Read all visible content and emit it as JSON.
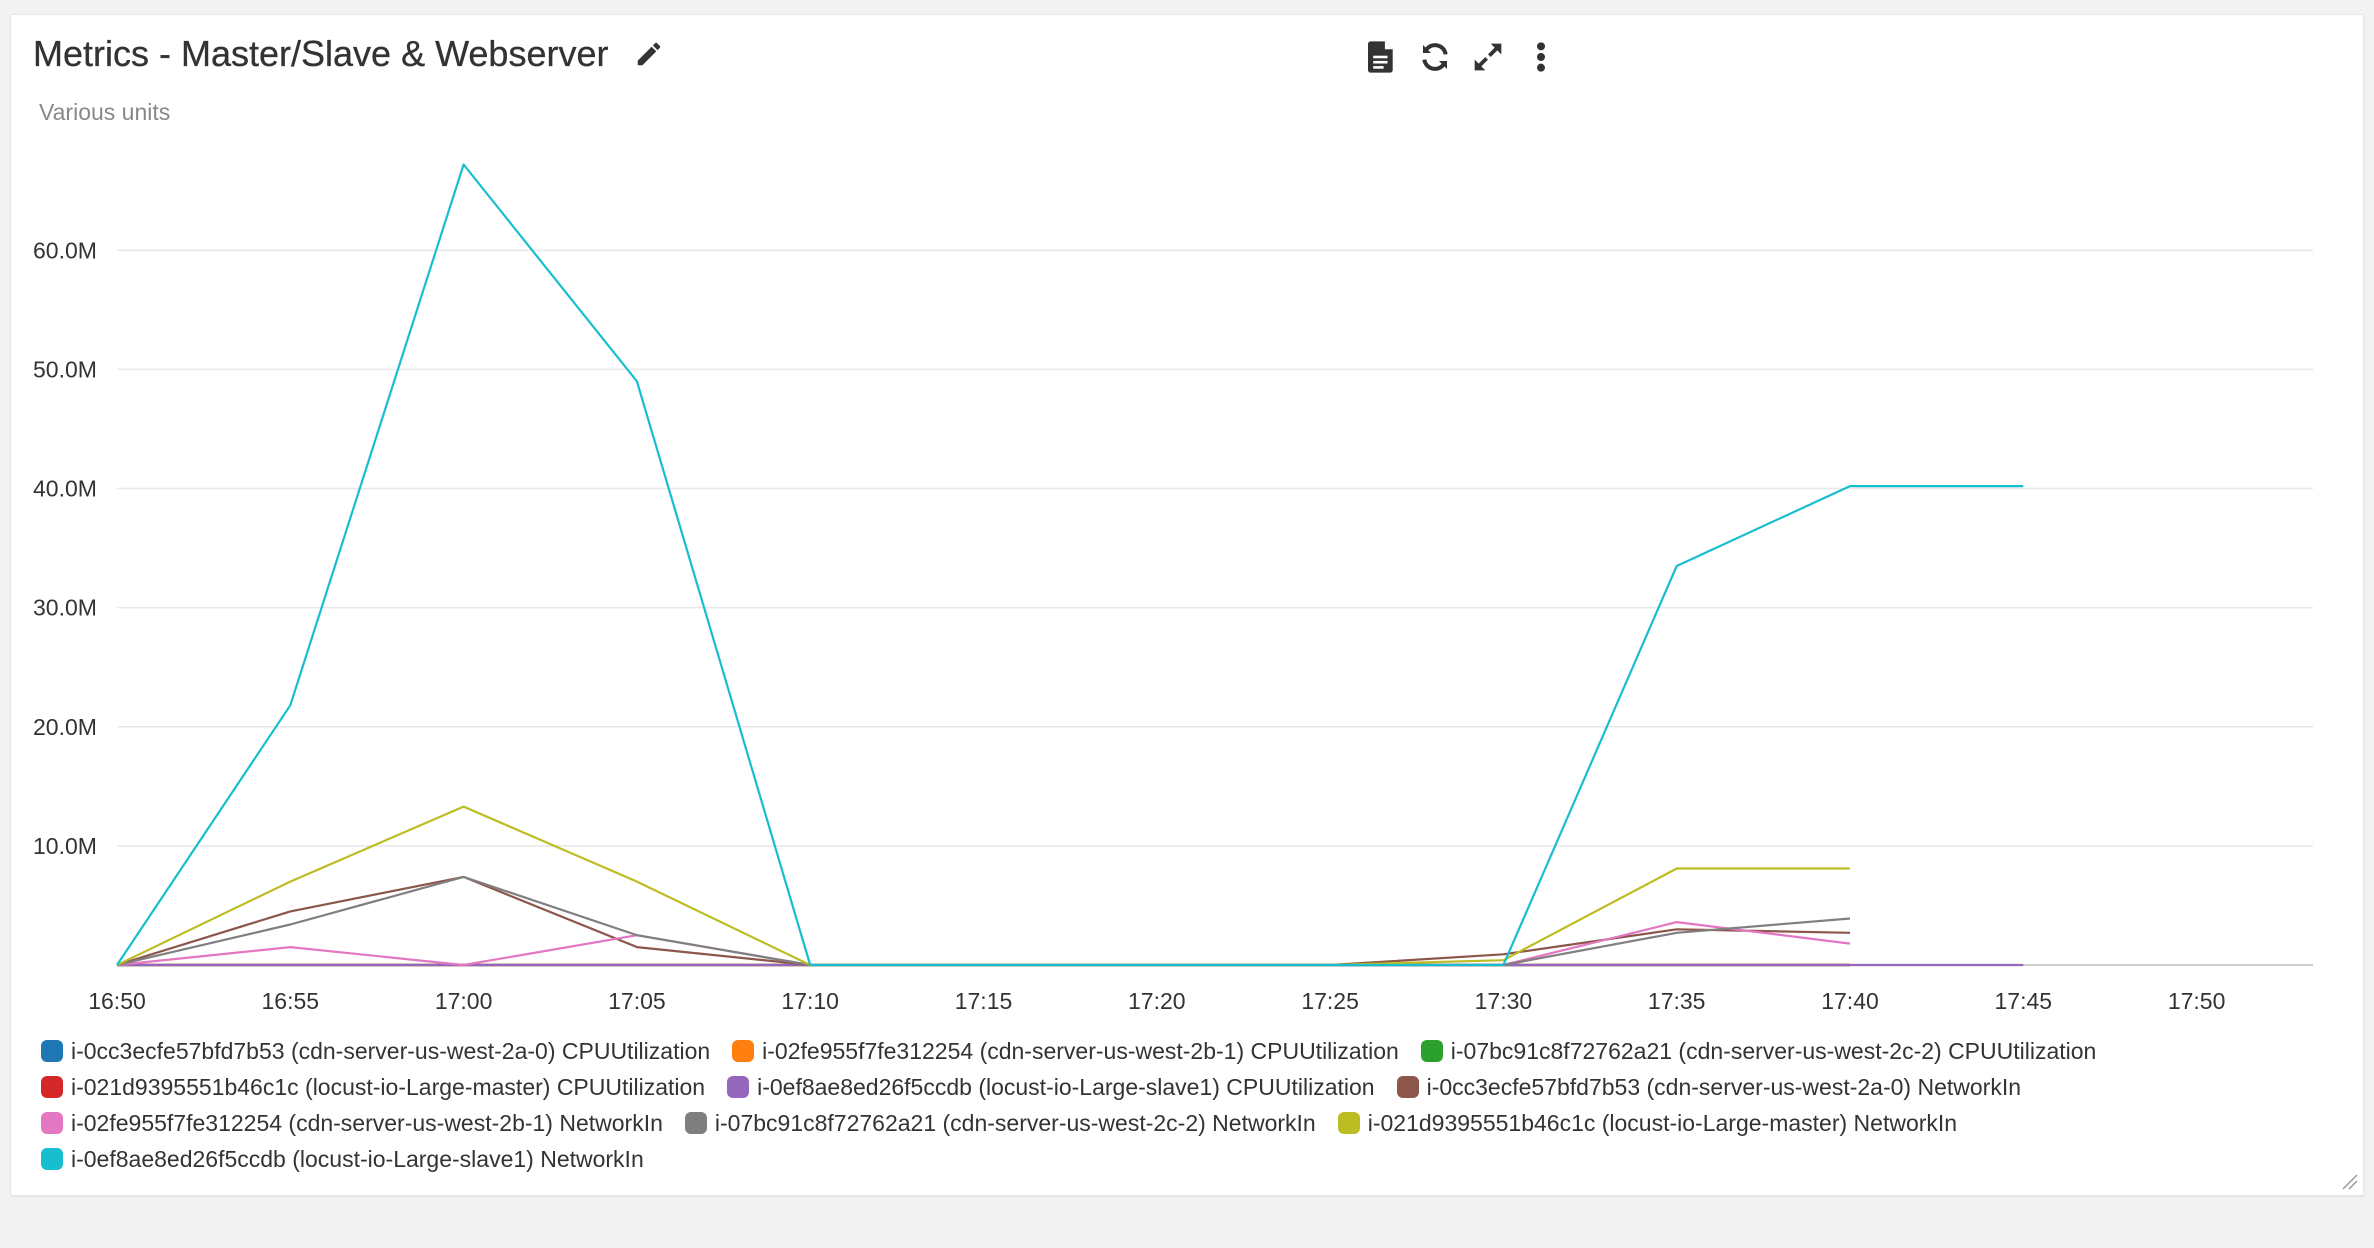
{
  "widget": {
    "title": "Metrics - Master/Slave & Webserver",
    "units_label": "Various units",
    "icons": {
      "edit": "pencil-icon",
      "export": "document-icon",
      "refresh": "refresh-icon",
      "expand": "expand-icon",
      "menu": "more-vertical-icon"
    }
  },
  "chart_data": {
    "type": "line",
    "title": "Metrics - Master/Slave & Webserver",
    "ylabel": "Various units",
    "xlabel": "",
    "x": [
      "16:50",
      "16:55",
      "17:00",
      "17:05",
      "17:10",
      "17:15",
      "17:20",
      "17:25",
      "17:30",
      "17:35",
      "17:40",
      "17:45",
      "17:50"
    ],
    "y_ticks": [
      "10.0M",
      "20.0M",
      "30.0M",
      "40.0M",
      "50.0M",
      "60.0M"
    ],
    "y_tick_values": [
      10000000,
      20000000,
      30000000,
      40000000,
      50000000,
      60000000
    ],
    "ylim": [
      0,
      68000000
    ],
    "grid": true,
    "legend_position": "bottom",
    "series": [
      {
        "name": "i-0cc3ecfe57bfd7b53 (cdn-server-us-west-2a-0) CPUUtilization",
        "color": "#1f77b4",
        "values": [
          0,
          0,
          0,
          0,
          0,
          0,
          0,
          0,
          0,
          0,
          0,
          null,
          null
        ]
      },
      {
        "name": "i-02fe955f7fe312254 (cdn-server-us-west-2b-1) CPUUtilization",
        "color": "#ff7f0e",
        "values": [
          0,
          0,
          0,
          0,
          0,
          0,
          0,
          0,
          0,
          0,
          0,
          null,
          null
        ]
      },
      {
        "name": "i-07bc91c8f72762a21 (cdn-server-us-west-2c-2) CPUUtilization",
        "color": "#2ca02c",
        "values": [
          0,
          0,
          0,
          0,
          0,
          0,
          0,
          0,
          0,
          0,
          0,
          null,
          null
        ]
      },
      {
        "name": "i-021d9395551b46c1c (locust-io-Large-master) CPUUtilization",
        "color": "#d62728",
        "values": [
          0,
          0,
          0,
          0,
          0,
          0,
          0,
          0,
          0,
          0,
          0,
          null,
          null
        ]
      },
      {
        "name": "i-0ef8ae8ed26f5ccdb (locust-io-Large-slave1) CPUUtilization",
        "color": "#9467bd",
        "values": [
          0,
          0,
          0,
          0,
          0,
          0,
          0,
          0,
          0,
          0,
          0,
          0,
          null
        ]
      },
      {
        "name": "i-0cc3ecfe57bfd7b53 (cdn-server-us-west-2a-0) NetworkIn",
        "color": "#8c564b",
        "values": [
          0,
          4500000,
          7400000,
          1500000,
          0,
          0,
          0,
          0,
          900000,
          3000000,
          2700000,
          null,
          null
        ]
      },
      {
        "name": "i-02fe955f7fe312254 (cdn-server-us-west-2b-1) NetworkIn",
        "color": "#e377c2",
        "values": [
          0,
          1500000,
          0,
          2500000,
          0,
          0,
          0,
          0,
          0,
          3600000,
          1800000,
          null,
          null
        ]
      },
      {
        "name": "i-07bc91c8f72762a21 (cdn-server-us-west-2c-2) NetworkIn",
        "color": "#7f7f7f",
        "values": [
          0,
          3400000,
          7400000,
          2500000,
          0,
          0,
          0,
          0,
          0,
          2700000,
          3900000,
          null,
          null
        ]
      },
      {
        "name": "i-021d9395551b46c1c (locust-io-Large-master) NetworkIn",
        "color": "#bcbd22",
        "values": [
          0,
          7000000,
          13300000,
          7000000,
          0,
          0,
          0,
          0,
          400000,
          8100000,
          8100000,
          null,
          null
        ]
      },
      {
        "name": "i-0ef8ae8ed26f5ccdb (locust-io-Large-slave1) NetworkIn",
        "color": "#17becf",
        "values": [
          0,
          21800000,
          67200000,
          49000000,
          0,
          0,
          0,
          0,
          0,
          33500000,
          40200000,
          40200000,
          null
        ]
      }
    ]
  }
}
